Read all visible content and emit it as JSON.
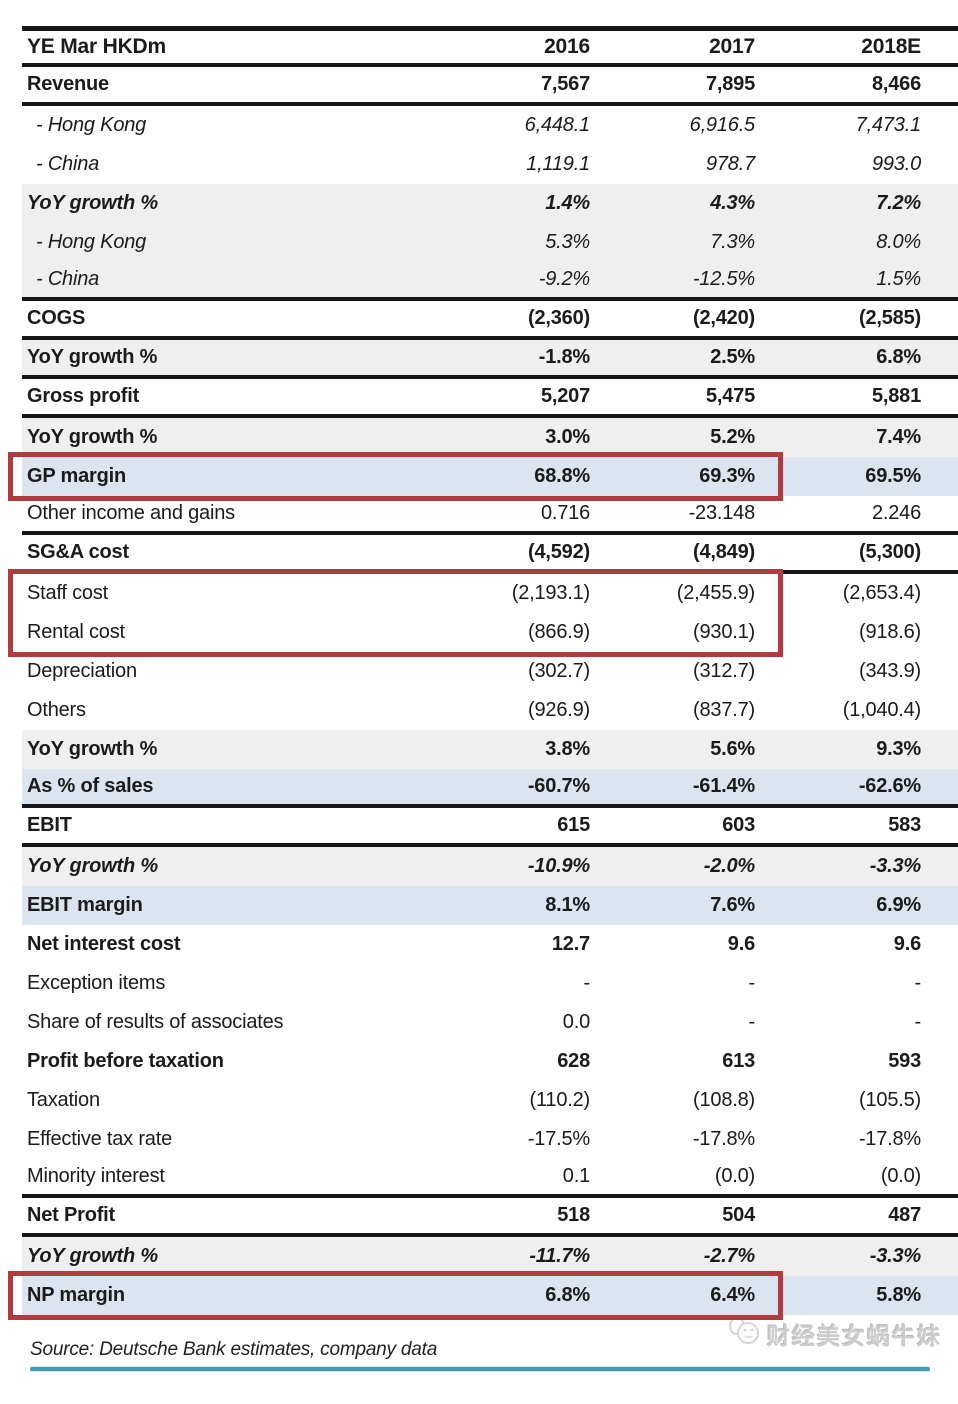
{
  "table": {
    "header": {
      "label": "YE Mar HKDm",
      "columns": [
        "2016",
        "2017",
        "2018E"
      ]
    },
    "rows": [
      {
        "label": "Revenue",
        "values": [
          "7,567",
          "7,895",
          "8,466"
        ],
        "weight": "bold",
        "bg": "white",
        "rule_below": true
      },
      {
        "label": "- Hong Kong",
        "values": [
          "6,448.1",
          "6,916.5",
          "7,473.1"
        ],
        "italic": true,
        "indent": true,
        "bg": "white"
      },
      {
        "label": "- China",
        "values": [
          "1,119.1",
          "978.7",
          "993.0"
        ],
        "italic": true,
        "indent": true,
        "bg": "white"
      },
      {
        "label": "YoY growth %",
        "values": [
          "1.4%",
          "4.3%",
          "7.2%"
        ],
        "weight": "bold",
        "italic": true,
        "bg": "gray"
      },
      {
        "label": "- Hong Kong",
        "values": [
          "5.3%",
          "7.3%",
          "8.0%"
        ],
        "italic": true,
        "indent": true,
        "bg": "gray"
      },
      {
        "label": "- China",
        "values": [
          "-9.2%",
          "-12.5%",
          "1.5%"
        ],
        "italic": true,
        "indent": true,
        "bg": "gray",
        "rule_below": true
      },
      {
        "label": "COGS",
        "values": [
          "(2,360)",
          "(2,420)",
          "(2,585)"
        ],
        "weight": "bold",
        "bg": "white",
        "rule_below": true
      },
      {
        "label": "YoY growth %",
        "values": [
          "-1.8%",
          "2.5%",
          "6.8%"
        ],
        "weight": "bold",
        "bg": "gray",
        "rule_below": true
      },
      {
        "label": "Gross profit",
        "values": [
          "5,207",
          "5,475",
          "5,881"
        ],
        "weight": "bold",
        "bg": "white",
        "rule_below": true
      },
      {
        "label": "YoY growth %",
        "values": [
          "3.0%",
          "5.2%",
          "7.4%"
        ],
        "weight": "bold",
        "bg": "gray"
      },
      {
        "label": "GP margin",
        "values": [
          "68.8%",
          "69.3%",
          "69.5%"
        ],
        "weight": "bold",
        "bg": "blue",
        "redbox": "solo"
      },
      {
        "label": "Other income and gains",
        "values": [
          "0.716",
          "-23.148",
          "2.246"
        ],
        "bg": "white",
        "rule_below": true
      },
      {
        "label": "SG&A cost",
        "values": [
          "(4,592)",
          "(4,849)",
          "(5,300)"
        ],
        "weight": "bold",
        "bg": "white",
        "rule_below": true
      },
      {
        "label": "Staff cost",
        "values": [
          "(2,193.1)",
          "(2,455.9)",
          "(2,653.4)"
        ],
        "bg": "white",
        "redbox": "start"
      },
      {
        "label": "Rental cost",
        "values": [
          "(866.9)",
          "(930.1)",
          "(918.6)"
        ],
        "bg": "white",
        "redbox": "end"
      },
      {
        "label": "Depreciation",
        "values": [
          "(302.7)",
          "(312.7)",
          "(343.9)"
        ],
        "bg": "white"
      },
      {
        "label": "Others",
        "values": [
          "(926.9)",
          "(837.7)",
          "(1,040.4)"
        ],
        "bg": "white"
      },
      {
        "label": "YoY growth %",
        "values": [
          "3.8%",
          "5.6%",
          "9.3%"
        ],
        "weight": "bold",
        "bg": "gray"
      },
      {
        "label": "As % of sales",
        "values": [
          "-60.7%",
          "-61.4%",
          "-62.6%"
        ],
        "weight": "bold",
        "bg": "blue",
        "rule_below": true
      },
      {
        "label": "EBIT",
        "values": [
          "615",
          "603",
          "583"
        ],
        "weight": "bold",
        "bg": "white",
        "rule_below": true
      },
      {
        "label": "YoY growth %",
        "values": [
          "-10.9%",
          "-2.0%",
          "-3.3%"
        ],
        "weight": "bold",
        "italic": true,
        "bg": "gray"
      },
      {
        "label": "EBIT margin",
        "values": [
          "8.1%",
          "7.6%",
          "6.9%"
        ],
        "weight": "bold",
        "bg": "blue"
      },
      {
        "label": "Net interest cost",
        "values": [
          "12.7",
          "9.6",
          "9.6"
        ],
        "weight": "bold",
        "bg": "white"
      },
      {
        "label": "Exception items",
        "values": [
          "-",
          "-",
          "-"
        ],
        "bg": "white"
      },
      {
        "label": "Share of results of associates",
        "values": [
          "0.0",
          "-",
          "-"
        ],
        "bg": "white"
      },
      {
        "label": "Profit before taxation",
        "values": [
          "628",
          "613",
          "593"
        ],
        "weight": "bold",
        "bg": "white"
      },
      {
        "label": "Taxation",
        "values": [
          "(110.2)",
          "(108.8)",
          "(105.5)"
        ],
        "bg": "white"
      },
      {
        "label": "Effective tax rate",
        "values": [
          "-17.5%",
          "-17.8%",
          "-17.8%"
        ],
        "bg": "white"
      },
      {
        "label": "Minority interest",
        "values": [
          "0.1",
          "(0.0)",
          "(0.0)"
        ],
        "bg": "white",
        "rule_below": true
      },
      {
        "label": "Net Profit",
        "values": [
          "518",
          "504",
          "487"
        ],
        "weight": "bold",
        "bg": "white",
        "rule_below": true
      },
      {
        "label": "YoY growth %",
        "values": [
          "-11.7%",
          "-2.7%",
          "-3.3%"
        ],
        "weight": "bold",
        "italic": true,
        "bg": "gray"
      },
      {
        "label": "NP margin",
        "values": [
          "6.8%",
          "6.4%",
          "5.8%"
        ],
        "weight": "bold",
        "bg": "blue",
        "redbox": "solo"
      }
    ]
  },
  "footer": {
    "source": "Source: Deutsche Bank estimates, company data",
    "watermark": "财经美女蜗牛妹"
  },
  "colors": {
    "highlight_box": "#b23b40",
    "row_gray": "#f0eff0",
    "row_blue": "#dce4f0",
    "rule": "#161616",
    "bottom_line": "#3f9dad"
  }
}
